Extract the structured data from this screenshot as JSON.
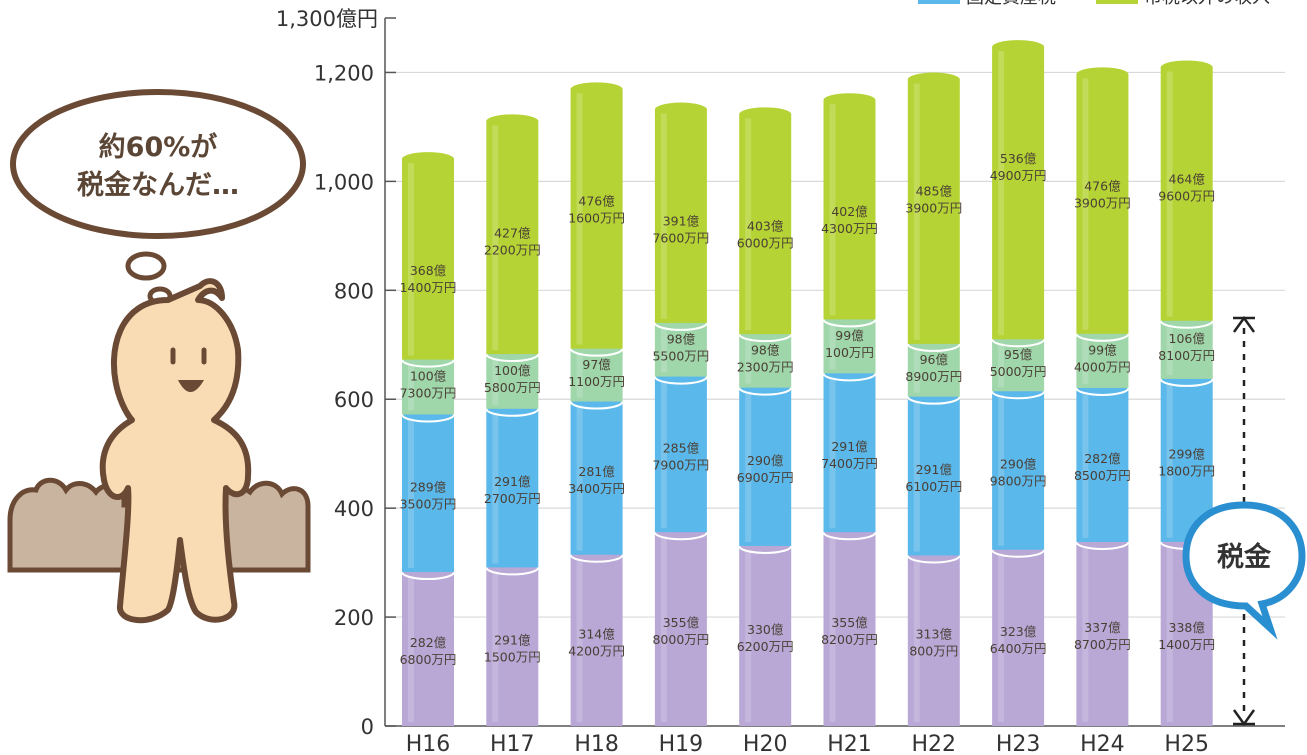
{
  "chart_data": {
    "type": "bar",
    "stacked": true,
    "categories": [
      "H16",
      "H17",
      "H18",
      "H19",
      "H20",
      "H21",
      "H22",
      "H23",
      "H24",
      "H25"
    ],
    "yaxis_top_label": "1,300億円",
    "y_ticks": [
      "0",
      "200",
      "400",
      "600",
      "800",
      "1,000",
      "1,200"
    ],
    "ylim": [
      0,
      1300
    ],
    "grid": true,
    "series": [
      {
        "key": "s1",
        "color": "#b9a7d6",
        "values": [
          282.68,
          291.15,
          314.42,
          355.8,
          330.62,
          355.82,
          313.08,
          323.64,
          337.87,
          338.14
        ],
        "labels": [
          [
            "282億",
            "6800万円"
          ],
          [
            "291億",
            "1500万円"
          ],
          [
            "314億",
            "4200万円"
          ],
          [
            "355億",
            "8000万円"
          ],
          [
            "330億",
            "6200万円"
          ],
          [
            "355億",
            "8200万円"
          ],
          [
            "313億",
            "800万円"
          ],
          [
            "323億",
            "6400万円"
          ],
          [
            "337億",
            "8700万円"
          ],
          [
            "338億",
            "1400万円"
          ]
        ]
      },
      {
        "key": "s2",
        "name": "固定資産税",
        "color": "#5bb8ea",
        "values": [
          289.35,
          291.27,
          281.34,
          285.79,
          290.69,
          291.74,
          291.61,
          290.98,
          282.85,
          299.18
        ],
        "labels": [
          [
            "289億",
            "3500万円"
          ],
          [
            "291億",
            "2700万円"
          ],
          [
            "281億",
            "3400万円"
          ],
          [
            "285億",
            "7900万円"
          ],
          [
            "290億",
            "6900万円"
          ],
          [
            "291億",
            "7400万円"
          ],
          [
            "291億",
            "6100万円"
          ],
          [
            "290億",
            "9800万円"
          ],
          [
            "282億",
            "8500万円"
          ],
          [
            "299億",
            "1800万円"
          ]
        ]
      },
      {
        "key": "s3",
        "color": "#9fd6aa",
        "values": [
          100.73,
          100.58,
          97.11,
          98.55,
          98.23,
          99.01,
          96.89,
          95.5,
          99.4,
          106.81
        ],
        "labels": [
          [
            "100億",
            "7300万円"
          ],
          [
            "100億",
            "5800万円"
          ],
          [
            "97億",
            "1100万円"
          ],
          [
            "98億",
            "5500万円"
          ],
          [
            "98億",
            "2300万円"
          ],
          [
            "99億",
            "100万円"
          ],
          [
            "96億",
            "8900万円"
          ],
          [
            "95億",
            "5000万円"
          ],
          [
            "99億",
            "4000万円"
          ],
          [
            "106億",
            "8100万円"
          ]
        ]
      },
      {
        "key": "s4",
        "name": "市税以外の収入",
        "color": "#b5d334",
        "values": [
          368.14,
          427.22,
          476.16,
          391.76,
          403.6,
          402.43,
          485.39,
          536.49,
          476.39,
          464.96
        ],
        "labels": [
          [
            "368億",
            "1400万円"
          ],
          [
            "427億",
            "2200万円"
          ],
          [
            "476億",
            "1600万円"
          ],
          [
            "391億",
            "7600万円"
          ],
          [
            "403億",
            "6000万円"
          ],
          [
            "402億",
            "4300万円"
          ],
          [
            "485億",
            "3900万円"
          ],
          [
            "536億",
            "4900万円"
          ],
          [
            "476億",
            "3900万円"
          ],
          [
            "464億",
            "9600万円"
          ]
        ]
      }
    ]
  },
  "annotations": {
    "thought_bubble_line1": "約60%が",
    "thought_bubble_line2": "税金なんだ…",
    "tax_badge": "税金"
  }
}
